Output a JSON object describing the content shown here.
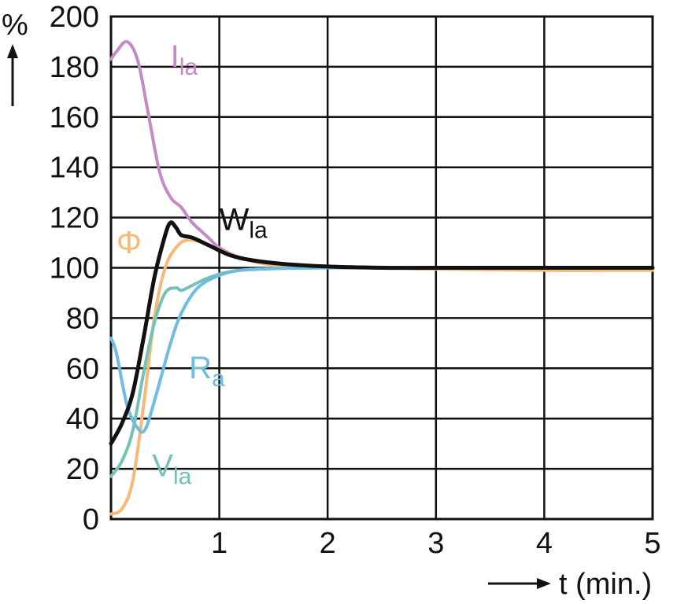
{
  "chart_data": {
    "type": "line",
    "xlabel": "t (min.)",
    "ylabel": "%",
    "xlim": [
      0,
      5
    ],
    "ylim": [
      0,
      200
    ],
    "x_ticks": [
      0,
      1,
      2,
      3,
      4,
      5
    ],
    "x_tick_labels": [
      "",
      "1",
      "2",
      "3",
      "4",
      "5"
    ],
    "y_ticks": [
      0,
      20,
      40,
      60,
      80,
      100,
      120,
      140,
      160,
      180,
      200
    ],
    "y_tick_labels": [
      "0",
      "20",
      "40",
      "60",
      "80",
      "100",
      "120",
      "140",
      "160",
      "180",
      "200"
    ],
    "grid": true,
    "legend": "none",
    "series": [
      {
        "name": "I",
        "subscript": "la",
        "color": "#c48ac4",
        "points": [
          [
            0,
            183
          ],
          [
            0.05,
            186
          ],
          [
            0.15,
            190
          ],
          [
            0.25,
            182
          ],
          [
            0.35,
            160
          ],
          [
            0.45,
            138
          ],
          [
            0.55,
            128
          ],
          [
            0.65,
            124
          ],
          [
            0.75,
            118
          ],
          [
            0.9,
            112
          ],
          [
            1.0,
            108
          ],
          [
            1.2,
            104
          ],
          [
            1.5,
            101.5
          ],
          [
            2.0,
            100.5
          ],
          [
            2.5,
            100.2
          ],
          [
            3.0,
            100
          ],
          [
            4.0,
            100
          ],
          [
            5.0,
            100
          ]
        ]
      },
      {
        "name": "W",
        "subscript": "la",
        "color": "#111111",
        "points": [
          [
            0,
            30
          ],
          [
            0.1,
            38
          ],
          [
            0.2,
            50
          ],
          [
            0.3,
            72
          ],
          [
            0.4,
            96
          ],
          [
            0.5,
            113
          ],
          [
            0.55,
            118
          ],
          [
            0.6,
            116
          ],
          [
            0.65,
            113
          ],
          [
            0.75,
            112
          ],
          [
            0.9,
            109
          ],
          [
            1.1,
            105
          ],
          [
            1.3,
            103
          ],
          [
            1.6,
            101.5
          ],
          [
            2.0,
            100.5
          ],
          [
            2.5,
            100
          ],
          [
            3.0,
            100
          ],
          [
            4.0,
            100
          ],
          [
            5.0,
            100
          ]
        ]
      },
      {
        "name": "Φ",
        "subscript": "",
        "color": "#f6b978",
        "points": [
          [
            0,
            2
          ],
          [
            0.1,
            4
          ],
          [
            0.2,
            15
          ],
          [
            0.3,
            45
          ],
          [
            0.4,
            80
          ],
          [
            0.5,
            100
          ],
          [
            0.6,
            108
          ],
          [
            0.7,
            111
          ],
          [
            0.85,
            110
          ],
          [
            1.0,
            107
          ],
          [
            1.2,
            104
          ],
          [
            1.5,
            101
          ],
          [
            2.0,
            100
          ],
          [
            2.5,
            100
          ],
          [
            3.0,
            99.5
          ],
          [
            4.0,
            99
          ],
          [
            5.0,
            99
          ]
        ]
      },
      {
        "name": "V",
        "subscript": "la",
        "color": "#74c2b6",
        "points": [
          [
            0,
            17
          ],
          [
            0.1,
            23
          ],
          [
            0.2,
            35
          ],
          [
            0.3,
            58
          ],
          [
            0.4,
            78
          ],
          [
            0.5,
            90
          ],
          [
            0.6,
            92
          ],
          [
            0.65,
            91
          ],
          [
            0.75,
            93
          ],
          [
            0.9,
            96
          ],
          [
            1.1,
            98.5
          ],
          [
            1.4,
            99.5
          ],
          [
            2.0,
            100
          ],
          [
            3.0,
            100
          ],
          [
            4.0,
            100
          ],
          [
            5.0,
            100
          ]
        ]
      },
      {
        "name": "R",
        "subscript": "a",
        "color": "#6ebce0",
        "points": [
          [
            0,
            72
          ],
          [
            0.05,
            66
          ],
          [
            0.15,
            45
          ],
          [
            0.25,
            36
          ],
          [
            0.32,
            36
          ],
          [
            0.42,
            50
          ],
          [
            0.55,
            70
          ],
          [
            0.65,
            82
          ],
          [
            0.8,
            92
          ],
          [
            1.0,
            97
          ],
          [
            1.2,
            99
          ],
          [
            1.5,
            99.7
          ],
          [
            2.0,
            100
          ],
          [
            3.0,
            100
          ],
          [
            4.0,
            100
          ],
          [
            5.0,
            100
          ]
        ]
      }
    ],
    "series_labels": [
      {
        "text": "I",
        "sub": "la",
        "x": 0.55,
        "y": 180
      },
      {
        "text": "W",
        "sub": "la",
        "x": 1.0,
        "y": 115
      },
      {
        "text": "Φ",
        "sub": "",
        "x": 0.05,
        "y": 106
      },
      {
        "text": "V",
        "sub": "la",
        "x": 0.38,
        "y": 17
      },
      {
        "text": "R",
        "sub": "a",
        "x": 0.72,
        "y": 56
      }
    ]
  }
}
